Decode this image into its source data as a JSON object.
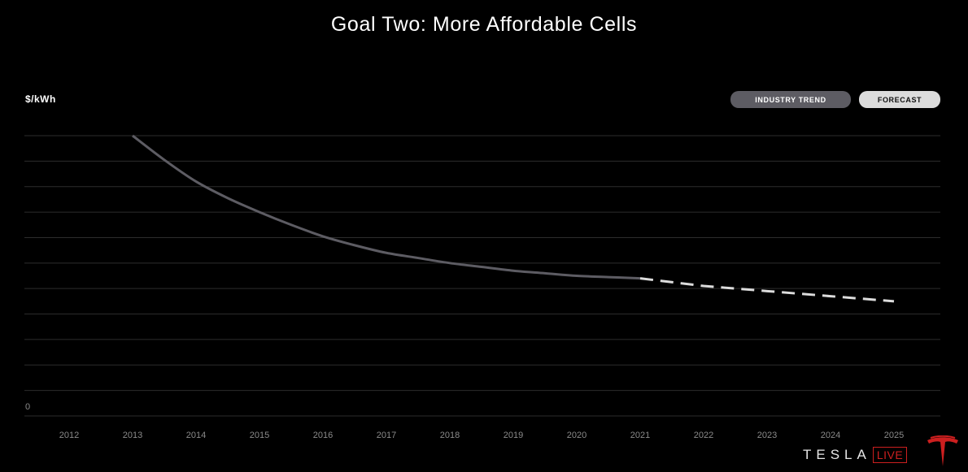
{
  "title": "Goal Two: More Affordable Cells",
  "legend": {
    "industry_trend": "INDUSTRY TREND",
    "forecast": "FORECAST"
  },
  "branding": {
    "tesla": "TESLA",
    "live": "LIVE"
  },
  "colors": {
    "background": "#000000",
    "trend_line": "#5d5c63",
    "forecast_line": "#dcdcdc",
    "gridline": "#2c2c2c",
    "tick_label": "#8a8a8a",
    "brand_red": "#cc1f1f"
  },
  "chart_data": {
    "type": "line",
    "title": "Goal Two: More Affordable Cells",
    "xlabel": "",
    "ylabel": "$/kWh",
    "categories": [
      "2012",
      "2013",
      "2014",
      "2015",
      "2016",
      "2017",
      "2018",
      "2019",
      "2020",
      "2021",
      "2022",
      "2023",
      "2024",
      "2025"
    ],
    "y_tick_labels": [
      "0"
    ],
    "ylim": [
      0,
      11
    ],
    "grid": true,
    "legend_position": "top-right",
    "series": [
      {
        "name": "INDUSTRY TREND",
        "style": "solid",
        "x": [
          2013,
          2013.5,
          2014,
          2014.5,
          2015,
          2015.5,
          2016,
          2016.5,
          2017,
          2017.5,
          2018,
          2018.5,
          2019,
          2019.5,
          2020,
          2020.5,
          2021
        ],
        "values": [
          11.0,
          10.05,
          9.2,
          8.55,
          8.0,
          7.5,
          7.05,
          6.7,
          6.4,
          6.2,
          6.0,
          5.85,
          5.7,
          5.6,
          5.5,
          5.45,
          5.4
        ]
      },
      {
        "name": "FORECAST",
        "style": "dashed",
        "x": [
          2021,
          2022,
          2023,
          2024,
          2025
        ],
        "values": [
          5.4,
          5.1,
          4.9,
          4.7,
          4.5
        ]
      }
    ]
  }
}
